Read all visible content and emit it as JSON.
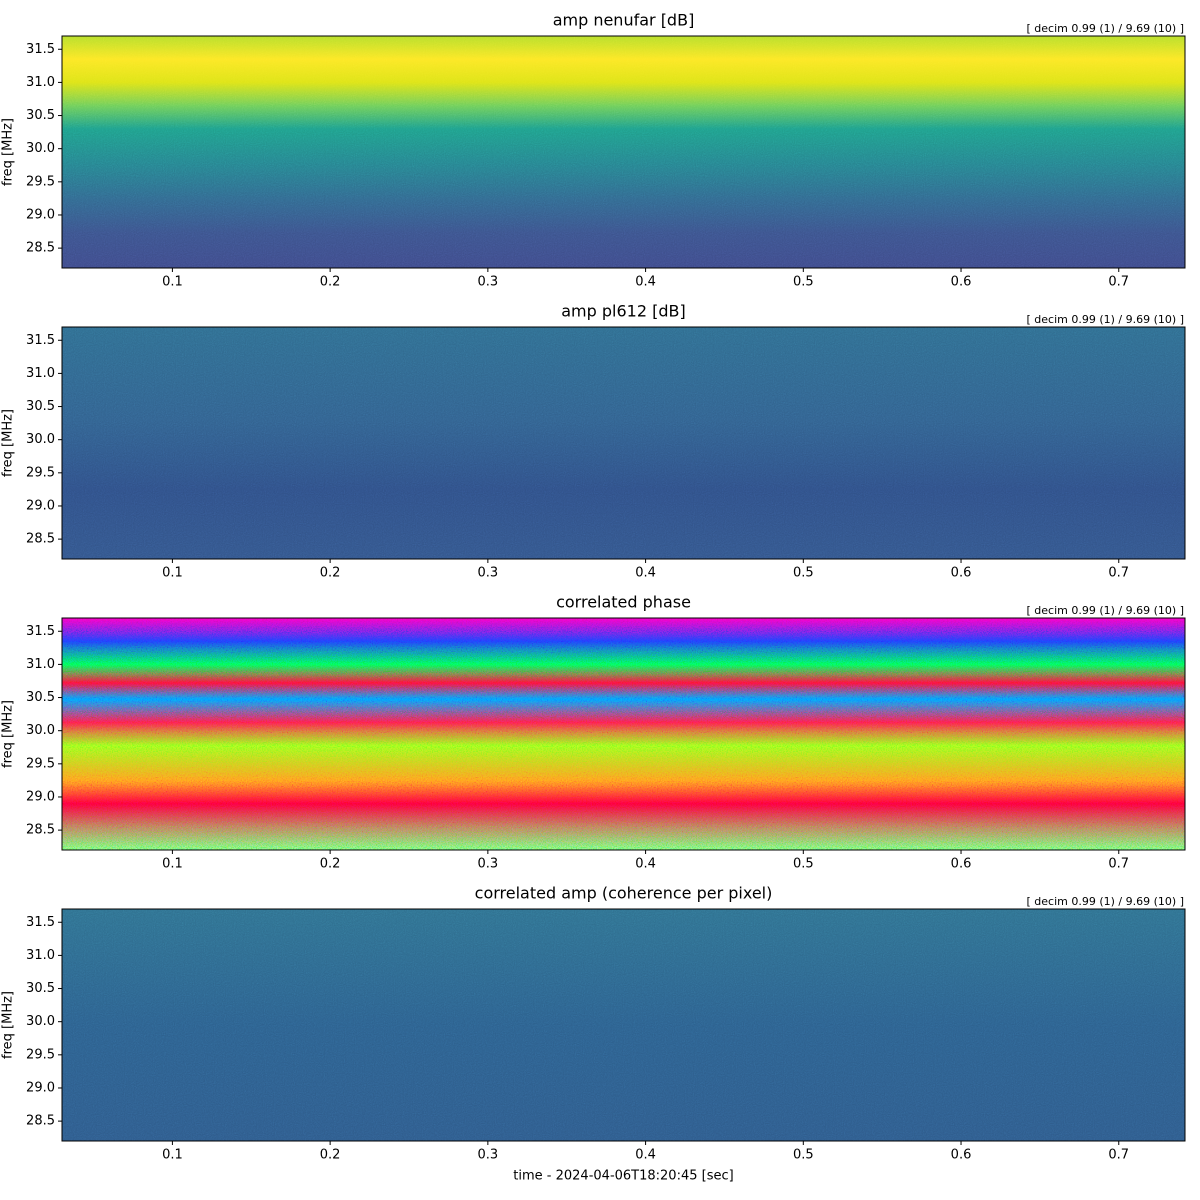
{
  "chart_data": [
    {
      "type": "spectrogram",
      "title": "amp nenufar [dB]",
      "annotation": "[ decim 0.99 (1) / 9.69 (10) ]",
      "ylabel": "freq [MHz]",
      "colormap": "viridis",
      "xlim": [
        0.03,
        0.742
      ],
      "ylim": [
        28.2,
        31.7
      ],
      "xticks": [
        0.1,
        0.2,
        0.3,
        0.4,
        0.5,
        0.6,
        0.7
      ],
      "yticks": [
        28.5,
        {
          "value": 29,
          "label": "29.0"
        },
        29.5,
        {
          "value": 30,
          "label": "30.0"
        },
        30.5,
        {
          "value": 31,
          "label": "31.0"
        },
        31.5
      ]
    },
    {
      "type": "spectrogram",
      "title": "amp pl612 [dB]",
      "annotation": "[ decim 0.99 (1) / 9.69 (10) ]",
      "ylabel": "freq [MHz]",
      "colormap": "viridis",
      "xlim": [
        0.03,
        0.742
      ],
      "ylim": [
        28.2,
        31.7
      ],
      "xticks": [
        0.1,
        0.2,
        0.3,
        0.4,
        0.5,
        0.6,
        0.7
      ],
      "yticks": [
        28.5,
        {
          "value": 29,
          "label": "29.0"
        },
        29.5,
        {
          "value": 30,
          "label": "30.0"
        },
        30.5,
        {
          "value": 31,
          "label": "31.0"
        },
        31.5
      ]
    },
    {
      "type": "spectrogram",
      "title": "correlated phase",
      "annotation": "[ decim 0.99 (1) / 9.69 (10) ]",
      "ylabel": "freq [MHz]",
      "colormap": "hsv",
      "xlim": [
        0.03,
        0.742
      ],
      "ylim": [
        28.2,
        31.7
      ],
      "xticks": [
        0.1,
        0.2,
        0.3,
        0.4,
        0.5,
        0.6,
        0.7
      ],
      "yticks": [
        28.5,
        {
          "value": 29,
          "label": "29.0"
        },
        29.5,
        {
          "value": 30,
          "label": "30.0"
        },
        30.5,
        {
          "value": 31,
          "label": "31.0"
        },
        31.5
      ]
    },
    {
      "type": "spectrogram",
      "title": "correlated amp (coherence per pixel)",
      "annotation": "[ decim 0.99 (1) / 9.69 (10) ]",
      "ylabel": "freq [MHz]",
      "colormap": "viridis",
      "xlabel": "time - 2024-04-06T18:20:45 [sec]",
      "xlim": [
        0.03,
        0.742
      ],
      "ylim": [
        28.2,
        31.7
      ],
      "xticks": [
        0.1,
        0.2,
        0.3,
        0.4,
        0.5,
        0.6,
        0.7
      ],
      "yticks": [
        28.5,
        {
          "value": 29,
          "label": "29.0"
        },
        29.5,
        {
          "value": 30,
          "label": "30.0"
        },
        30.5,
        {
          "value": 31,
          "label": "31.0"
        },
        31.5
      ]
    }
  ]
}
